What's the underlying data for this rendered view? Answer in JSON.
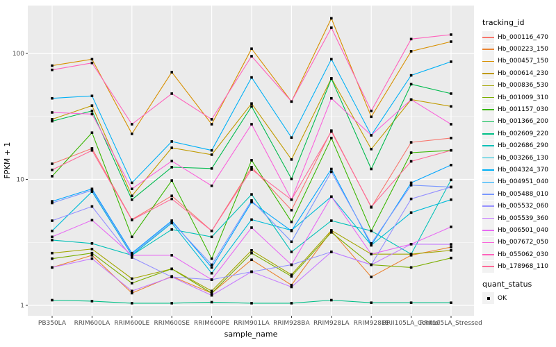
{
  "figure": {
    "y_axis_title": "FPKM + 1",
    "x_axis_title": "sample_name",
    "legend_tracking_title": "tracking_id",
    "legend_quant_title": "quant_status",
    "legend_quant_ok_label": "OK"
  },
  "colors": {
    "panel_bg": "#EBEBEB",
    "grid": "#FFFFFF",
    "axis_text": "#4D4D4D",
    "tick_mark": "#333333",
    "point": "#000000",
    "legend_key_bg": "#F2F2F2"
  },
  "chart_data": {
    "type": "line",
    "title": "",
    "xlabel": "sample_name",
    "ylabel": "FPKM + 1",
    "y_scale": "log10",
    "ylim": [
      0.83,
      240
    ],
    "y_tick_values": [
      1,
      10,
      100
    ],
    "y_tick_labels": [
      "1",
      "10",
      "100"
    ],
    "y_minor_tick_values": [
      3.1623,
      31.623
    ],
    "grid": "white major+minor gridlines on gray panel (ggplot2 theme_gray)",
    "legend_position": "right",
    "points": "black filled squares at every observation (quant_status = OK)",
    "categories": [
      "PB350LA",
      "RRIM600LA",
      "RRIM600LE",
      "RRIM600SE",
      "RRIM600PE",
      "RRIM901LA",
      "RRIM928BA",
      "RRIM928LA",
      "RRIM928LE",
      "RRII105LA_Control",
      "RRII105LA_Stressed"
    ],
    "series": [
      {
        "name": "Hb_000116_470",
        "color": "#F8766D",
        "values": [
          13.3,
          17.6,
          4.8,
          7.4,
          3.9,
          12.5,
          5.7,
          24.4,
          6.0,
          19.7,
          21.3
        ]
      },
      {
        "name": "Hb_000223_150",
        "color": "#EA8331",
        "values": [
          2.0,
          2.5,
          1.25,
          1.7,
          1.25,
          2.3,
          1.45,
          3.9,
          1.68,
          2.5,
          2.9
        ]
      },
      {
        "name": "Hb_000457_150",
        "color": "#D89000",
        "values": [
          80,
          90,
          23,
          71,
          27.4,
          109,
          41.5,
          190,
          31.4,
          104,
          124
        ]
      },
      {
        "name": "Hb_000614_230",
        "color": "#C09B00",
        "values": [
          30,
          38.5,
          7.4,
          17.8,
          15.7,
          40,
          14.4,
          63.5,
          17.4,
          43,
          38
        ]
      },
      {
        "name": "Hb_000836_530",
        "color": "#A3A500",
        "values": [
          2.6,
          2.8,
          1.63,
          1.95,
          1.3,
          2.73,
          1.75,
          3.94,
          2.55,
          2.55,
          2.73
        ]
      },
      {
        "name": "Hb_001009_310",
        "color": "#7CAE00",
        "values": [
          2.35,
          2.6,
          1.5,
          1.95,
          1.25,
          2.6,
          1.7,
          3.8,
          2.1,
          2.0,
          2.38
        ]
      },
      {
        "name": "Hb_001157_030",
        "color": "#39B600",
        "values": [
          10.6,
          23.5,
          3.5,
          9.8,
          2.35,
          14.2,
          4.6,
          21.3,
          3.9,
          16.3,
          17
        ]
      },
      {
        "name": "Hb_001366_200",
        "color": "#00BB4E",
        "values": [
          29,
          35,
          6.9,
          12.5,
          12.2,
          38,
          10.1,
          63,
          12.1,
          57,
          48
        ]
      },
      {
        "name": "Hb_002609_220",
        "color": "#00C087",
        "values": [
          1.1,
          1.08,
          1.04,
          1.04,
          1.06,
          1.04,
          1.04,
          1.1,
          1.05,
          1.05,
          1.05
        ]
      },
      {
        "name": "Hb_002686_290",
        "color": "#00C0B8",
        "values": [
          3.3,
          3.1,
          2.5,
          4.0,
          3.5,
          7.6,
          2.66,
          4.7,
          3.9,
          2.55,
          9.9
        ]
      },
      {
        "name": "Hb_003266_130",
        "color": "#00BCD8",
        "values": [
          3.9,
          8.0,
          2.5,
          4.5,
          1.8,
          4.8,
          3.94,
          7.3,
          3.0,
          5.45,
          6.9
        ]
      },
      {
        "name": "Hb_004324_370",
        "color": "#00B0F6",
        "values": [
          44,
          46,
          9.4,
          20,
          17,
          64.5,
          21.5,
          90,
          22.4,
          67,
          86
        ]
      },
      {
        "name": "Hb_004951_040",
        "color": "#00A5FF",
        "values": [
          6.7,
          8.4,
          2.6,
          4.7,
          2.0,
          6.6,
          3.9,
          12.1,
          3.0,
          9.4,
          13
        ]
      },
      {
        "name": "Hb_005488_010",
        "color": "#7997FF",
        "values": [
          6.5,
          8.2,
          2.55,
          4.6,
          2.1,
          6.8,
          3.2,
          11.5,
          3.1,
          9.0,
          8.7
        ]
      },
      {
        "name": "Hb_005532_060",
        "color": "#9590FF",
        "values": [
          4.7,
          6.1,
          2.4,
          1.68,
          1.6,
          1.85,
          2.1,
          2.66,
          2.1,
          7.0,
          8.7
        ]
      },
      {
        "name": "Hb_005539_360",
        "color": "#C77CFF",
        "values": [
          2.0,
          2.35,
          1.3,
          1.68,
          1.2,
          1.85,
          1.4,
          2.66,
          2.1,
          3.06,
          3.05
        ]
      },
      {
        "name": "Hb_006501_040",
        "color": "#E76BF3",
        "values": [
          3.5,
          4.75,
          2.5,
          2.5,
          1.6,
          4.14,
          2.1,
          7.3,
          2.55,
          3.06,
          4.2
        ]
      },
      {
        "name": "Hb_007672_050",
        "color": "#FA62DB",
        "values": [
          34,
          33,
          8.4,
          14,
          8.9,
          27.4,
          6.9,
          44,
          22.4,
          43,
          27.4
        ]
      },
      {
        "name": "Hb_055062_030",
        "color": "#FF62BC",
        "values": [
          74,
          84,
          27.4,
          48,
          30,
          95,
          41.5,
          160,
          35,
          130,
          141
        ]
      },
      {
        "name": "Hb_178968_110",
        "color": "#FF6A98",
        "values": [
          11.9,
          17,
          4.76,
          7.0,
          3.9,
          12.0,
          6.9,
          24,
          6.05,
          13.9,
          17
        ]
      }
    ],
    "quant_status_legend": {
      "title": "quant_status",
      "items": [
        "OK"
      ]
    }
  }
}
